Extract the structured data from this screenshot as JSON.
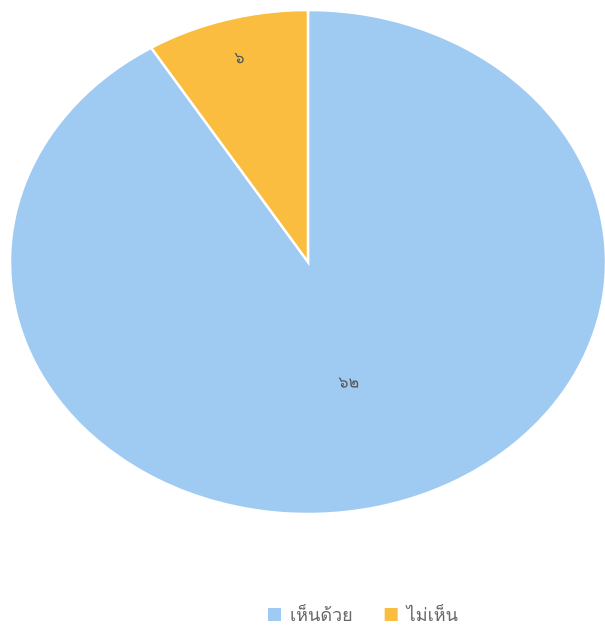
{
  "chart_data": {
    "type": "pie",
    "categories": [
      "เห็นด้วย",
      "ไม่เห็น"
    ],
    "series": [
      {
        "values": [
          62,
          6
        ],
        "value_labels": [
          "๖๒",
          "๖"
        ],
        "colors": [
          "#9fcbf2",
          "#fbbd3f"
        ]
      }
    ],
    "legend": "bottom"
  }
}
